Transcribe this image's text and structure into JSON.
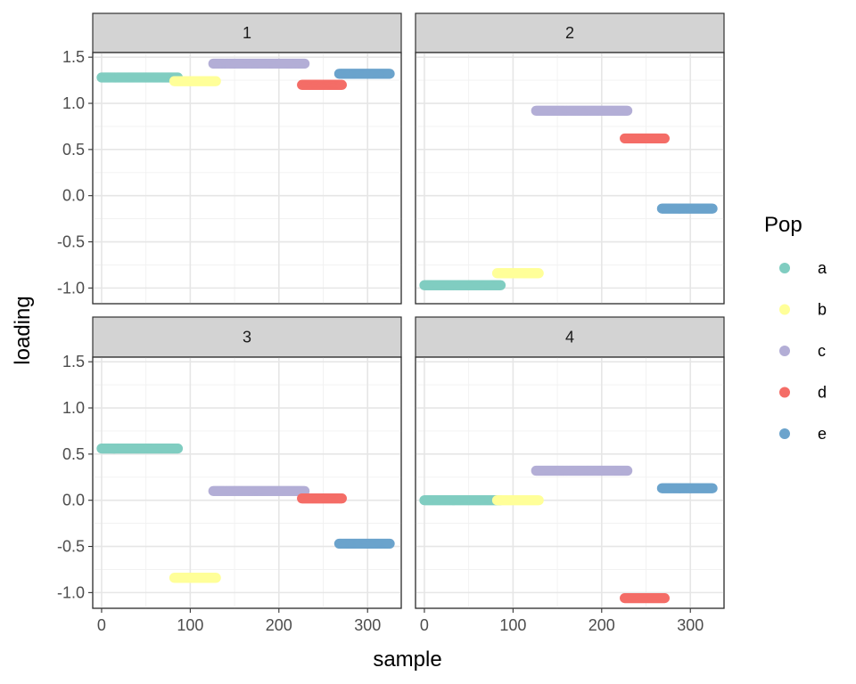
{
  "chart_data": {
    "type": "scatter",
    "xlabel": "sample",
    "ylabel": "loading",
    "xlim": [
      -10,
      338
    ],
    "ylim": [
      -1.17,
      1.55
    ],
    "x_ticks": [
      0,
      100,
      200,
      300
    ],
    "x_tick_labels": [
      "0",
      "100",
      "200",
      "300"
    ],
    "y_ticks": [
      -1.0,
      -0.5,
      0.0,
      0.5,
      1.0,
      1.5
    ],
    "y_tick_labels": [
      "-1.0",
      "-0.5",
      "0.0",
      "0.5",
      "1.0",
      "1.5"
    ],
    "grid": true,
    "legend": {
      "title": "Pop",
      "position": "right",
      "entries": [
        {
          "label": "a",
          "color": "#80cdc1"
        },
        {
          "label": "b",
          "color": "#ffff99"
        },
        {
          "label": "c",
          "color": "#b3aed6"
        },
        {
          "label": "d",
          "color": "#f46d67"
        },
        {
          "label": "e",
          "color": "#6ba3cc"
        }
      ]
    },
    "population_ranges": {
      "a": [
        0,
        86
      ],
      "b": [
        82,
        129
      ],
      "c": [
        126,
        229
      ],
      "d": [
        226,
        271
      ],
      "e": [
        268,
        325
      ]
    },
    "facets": [
      {
        "label": "1",
        "series": [
          {
            "name": "a",
            "y": 1.28
          },
          {
            "name": "b",
            "y": 1.24
          },
          {
            "name": "c",
            "y": 1.43
          },
          {
            "name": "d",
            "y": 1.2
          },
          {
            "name": "e",
            "y": 1.32
          }
        ]
      },
      {
        "label": "2",
        "series": [
          {
            "name": "a",
            "y": -0.97
          },
          {
            "name": "b",
            "y": -0.84
          },
          {
            "name": "c",
            "y": 0.92
          },
          {
            "name": "d",
            "y": 0.62
          },
          {
            "name": "e",
            "y": -0.14
          }
        ]
      },
      {
        "label": "3",
        "series": [
          {
            "name": "a",
            "y": 0.56
          },
          {
            "name": "b",
            "y": -0.84
          },
          {
            "name": "c",
            "y": 0.1
          },
          {
            "name": "d",
            "y": 0.02
          },
          {
            "name": "e",
            "y": -0.47
          }
        ]
      },
      {
        "label": "4",
        "series": [
          {
            "name": "a",
            "y": 0.0
          },
          {
            "name": "b",
            "y": 0.0
          },
          {
            "name": "c",
            "y": 0.32
          },
          {
            "name": "d",
            "y": -1.06
          },
          {
            "name": "e",
            "y": 0.13
          }
        ]
      }
    ]
  }
}
